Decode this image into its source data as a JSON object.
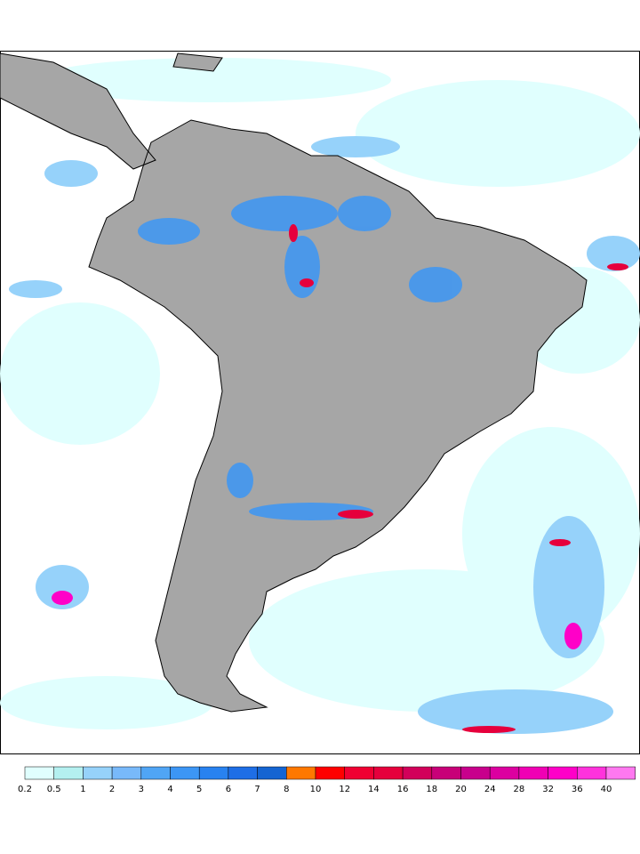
{
  "colorbar": {
    "levels": [
      0.2,
      0.5,
      1,
      2,
      3,
      4,
      5,
      6,
      7,
      8,
      10,
      12,
      14,
      16,
      18,
      20,
      24,
      28,
      32,
      36,
      40
    ],
    "colors": [
      "#e0fffe",
      "#b4f0f0",
      "#96d2fa",
      "#78b9fa",
      "#50a5f5",
      "#3c96f5",
      "#2882f0",
      "#1e6ee6",
      "#1464d2",
      "#ff7800",
      "#ff0000",
      "#f00032",
      "#e6003c",
      "#d2005a",
      "#c80078",
      "#c8008c",
      "#dc00a0",
      "#f000b4",
      "#ff00c8",
      "#ff32dc",
      "#ff78f0"
    ]
  }
}
